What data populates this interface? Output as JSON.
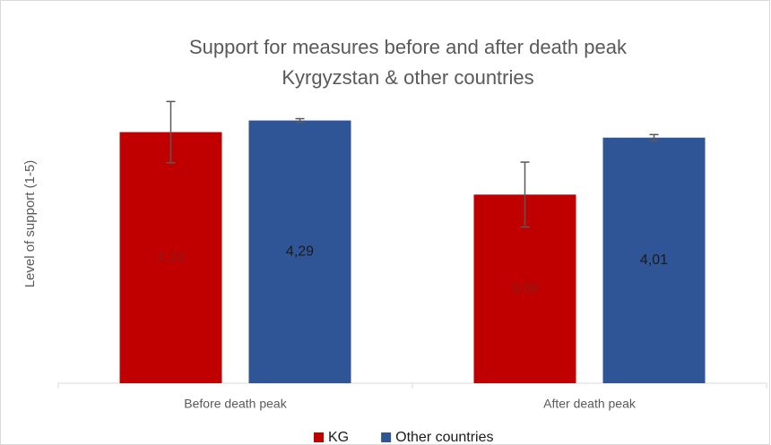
{
  "chart_data": {
    "type": "bar",
    "title": "Support for measures before and after death peak",
    "subtitle": "Kyrgyzstan & other countries",
    "y_label": "Level of support (1-5)",
    "categories": [
      "Before death peak",
      "After death peak"
    ],
    "series": [
      {
        "name": "KG",
        "color": "#c00000",
        "label_color": "#8b1a1a",
        "values": [
          4.1,
          3.08
        ],
        "value_labels": [
          "4,10",
          "3,08"
        ],
        "errors": [
          0.5,
          0.53
        ]
      },
      {
        "name": "Other countries",
        "color": "#2f5597",
        "label_color": "#1a1a1a",
        "values": [
          4.29,
          4.01
        ],
        "value_labels": [
          "4,29",
          "4,01"
        ],
        "errors": [
          0.03,
          0.05
        ]
      }
    ],
    "ylim": [
      0,
      5
    ],
    "legend": "bottom"
  }
}
